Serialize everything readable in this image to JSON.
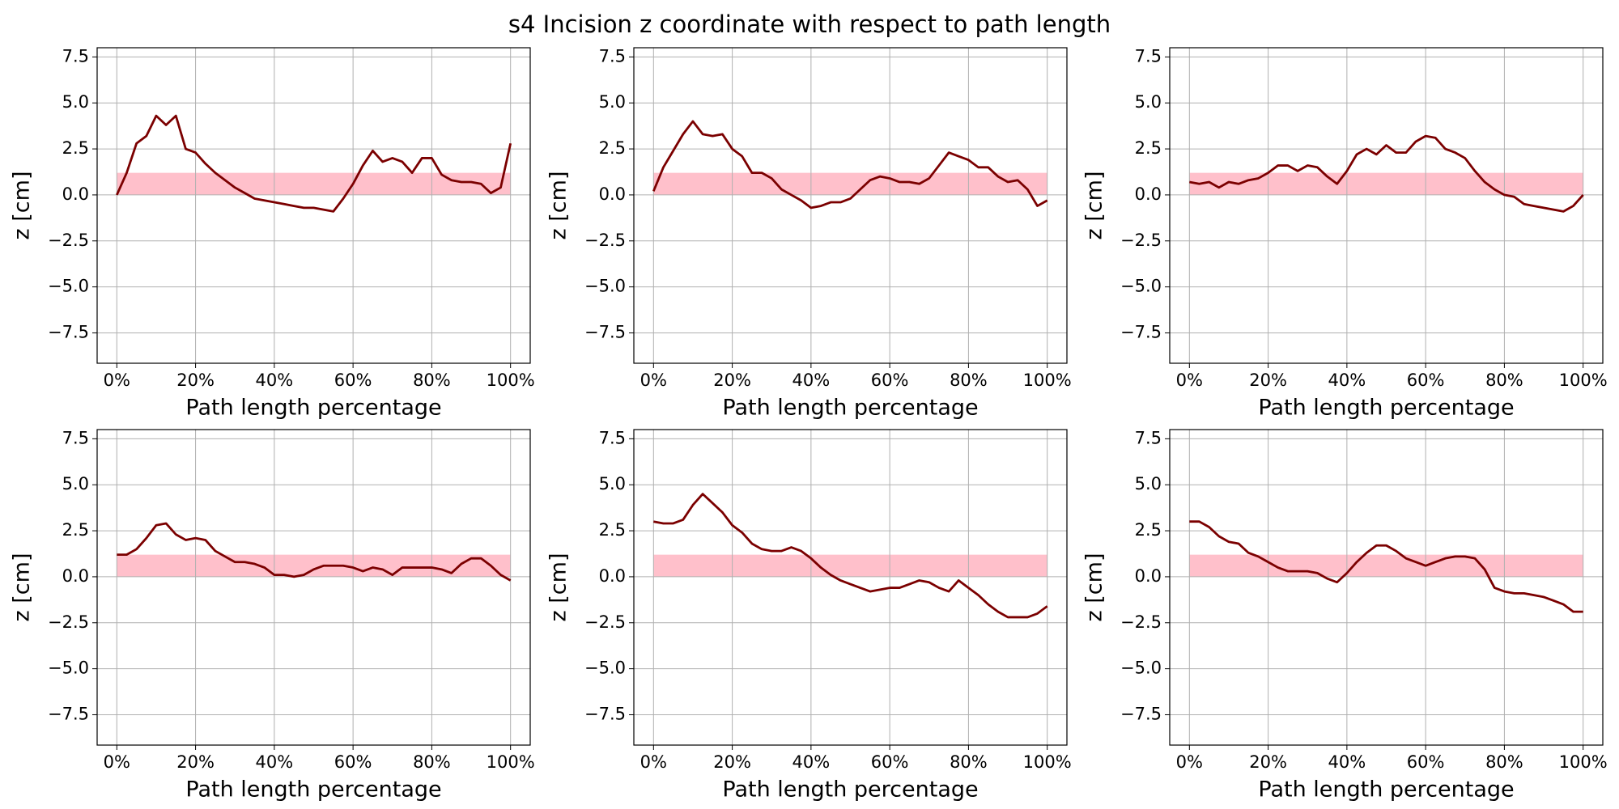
{
  "title": "s4 Incision z coordinate with respect to path length",
  "chart_data": [
    {
      "type": "line",
      "xlabel": "Path length percentage",
      "ylabel": "z [cm]",
      "color": "#7b0000",
      "band": [
        0,
        1.2
      ],
      "band_color": "#ffc0cb",
      "grid": true,
      "xlim": [
        -5,
        105
      ],
      "ylim": [
        -9.15,
        8.0
      ],
      "xticks": [
        {
          "value": 0,
          "label": "0%"
        },
        {
          "value": 20,
          "label": "20%"
        },
        {
          "value": 40,
          "label": "40%"
        },
        {
          "value": 60,
          "label": "60%"
        },
        {
          "value": 80,
          "label": "80%"
        },
        {
          "value": 100,
          "label": "100%"
        }
      ],
      "yticks": [
        {
          "value": -7.5,
          "label": "−7.5"
        },
        {
          "value": -5,
          "label": "−5.0"
        },
        {
          "value": -2.5,
          "label": "−2.5"
        },
        {
          "value": 0,
          "label": "0.0"
        },
        2.5,
        {
          "value": 5,
          "label": "5.0"
        },
        7.5
      ],
      "x": [
        0,
        2.5,
        5,
        7.5,
        10,
        12.5,
        15,
        17.5,
        20,
        22.5,
        25,
        27.5,
        30,
        32.5,
        35,
        37.5,
        40,
        42.5,
        45,
        47.5,
        50,
        52.5,
        55,
        57.5,
        60,
        62.5,
        65,
        67.5,
        70,
        72.5,
        75,
        77.5,
        80,
        82.5,
        85,
        87.5,
        90,
        92.5,
        95,
        97.5,
        100
      ],
      "values": [
        0,
        1.2,
        2.8,
        3.2,
        4.3,
        3.8,
        4.3,
        2.5,
        2.3,
        1.7,
        1.2,
        0.8,
        0.4,
        0.1,
        -0.2,
        -0.3,
        -0.4,
        -0.5,
        -0.6,
        -0.7,
        -0.7,
        -0.8,
        -0.9,
        -0.2,
        0.6,
        1.6,
        2.4,
        1.8,
        2.0,
        1.8,
        1.2,
        2.0,
        2.0,
        1.1,
        0.8,
        0.7,
        0.7,
        0.6,
        0.1,
        0.4,
        2.8
      ]
    },
    {
      "type": "line",
      "xlabel": "Path length percentage",
      "ylabel": "z [cm]",
      "color": "#7b0000",
      "band": [
        0,
        1.2
      ],
      "band_color": "#ffc0cb",
      "grid": true,
      "xlim": [
        -5,
        105
      ],
      "ylim": [
        -9.15,
        8.0
      ],
      "xticks": [
        {
          "value": 0,
          "label": "0%"
        },
        {
          "value": 20,
          "label": "20%"
        },
        {
          "value": 40,
          "label": "40%"
        },
        {
          "value": 60,
          "label": "60%"
        },
        {
          "value": 80,
          "label": "80%"
        },
        {
          "value": 100,
          "label": "100%"
        }
      ],
      "yticks": [
        {
          "value": -7.5,
          "label": "−7.5"
        },
        {
          "value": -5,
          "label": "−5.0"
        },
        {
          "value": -2.5,
          "label": "−2.5"
        },
        {
          "value": 0,
          "label": "0.0"
        },
        2.5,
        {
          "value": 5,
          "label": "5.0"
        },
        7.5
      ],
      "x": [
        0,
        2.5,
        5,
        7.5,
        10,
        12.5,
        15,
        17.5,
        20,
        22.5,
        25,
        27.5,
        30,
        32.5,
        35,
        37.5,
        40,
        42.5,
        45,
        47.5,
        50,
        52.5,
        55,
        57.5,
        60,
        62.5,
        65,
        67.5,
        70,
        72.5,
        75,
        77.5,
        80,
        82.5,
        85,
        87.5,
        90,
        92.5,
        95,
        97.5,
        100
      ],
      "values": [
        0.2,
        1.5,
        2.4,
        3.3,
        4.0,
        3.3,
        3.2,
        3.3,
        2.5,
        2.1,
        1.2,
        1.2,
        0.9,
        0.3,
        0.0,
        -0.3,
        -0.7,
        -0.6,
        -0.4,
        -0.4,
        -0.2,
        0.3,
        0.8,
        1.0,
        0.9,
        0.7,
        0.7,
        0.6,
        0.9,
        1.6,
        2.3,
        2.1,
        1.9,
        1.5,
        1.5,
        1.0,
        0.7,
        0.8,
        0.3,
        -0.6,
        -0.3
      ]
    },
    {
      "type": "line",
      "xlabel": "Path length percentage",
      "ylabel": "z [cm]",
      "color": "#7b0000",
      "band": [
        0,
        1.2
      ],
      "band_color": "#ffc0cb",
      "grid": true,
      "xlim": [
        -5,
        105
      ],
      "ylim": [
        -9.15,
        8.0
      ],
      "xticks": [
        {
          "value": 0,
          "label": "0%"
        },
        {
          "value": 20,
          "label": "20%"
        },
        {
          "value": 40,
          "label": "40%"
        },
        {
          "value": 60,
          "label": "60%"
        },
        {
          "value": 80,
          "label": "80%"
        },
        {
          "value": 100,
          "label": "100%"
        }
      ],
      "yticks": [
        {
          "value": -7.5,
          "label": "−7.5"
        },
        {
          "value": -5,
          "label": "−5.0"
        },
        {
          "value": -2.5,
          "label": "−2.5"
        },
        {
          "value": 0,
          "label": "0.0"
        },
        2.5,
        {
          "value": 5,
          "label": "5.0"
        },
        7.5
      ],
      "x": [
        0,
        2.5,
        5,
        7.5,
        10,
        12.5,
        15,
        17.5,
        20,
        22.5,
        25,
        27.5,
        30,
        32.5,
        35,
        37.5,
        40,
        42.5,
        45,
        47.5,
        50,
        52.5,
        55,
        57.5,
        60,
        62.5,
        65,
        67.5,
        70,
        72.5,
        75,
        77.5,
        80,
        82.5,
        85,
        87.5,
        90,
        92.5,
        95,
        97.5,
        100
      ],
      "values": [
        0.7,
        0.6,
        0.7,
        0.4,
        0.7,
        0.6,
        0.8,
        0.9,
        1.2,
        1.6,
        1.6,
        1.3,
        1.6,
        1.5,
        1.0,
        0.6,
        1.3,
        2.2,
        2.5,
        2.2,
        2.7,
        2.3,
        2.3,
        2.9,
        3.2,
        3.1,
        2.5,
        2.3,
        2.0,
        1.3,
        0.7,
        0.3,
        0.0,
        -0.1,
        -0.5,
        -0.6,
        -0.7,
        -0.8,
        -0.9,
        -0.6,
        0.0
      ]
    },
    {
      "type": "line",
      "xlabel": "Path length percentage",
      "ylabel": "z [cm]",
      "color": "#7b0000",
      "band": [
        0,
        1.2
      ],
      "band_color": "#ffc0cb",
      "grid": true,
      "xlim": [
        -5,
        105
      ],
      "ylim": [
        -9.15,
        8.0
      ],
      "xticks": [
        {
          "value": 0,
          "label": "0%"
        },
        {
          "value": 20,
          "label": "20%"
        },
        {
          "value": 40,
          "label": "40%"
        },
        {
          "value": 60,
          "label": "60%"
        },
        {
          "value": 80,
          "label": "80%"
        },
        {
          "value": 100,
          "label": "100%"
        }
      ],
      "yticks": [
        {
          "value": -7.5,
          "label": "−7.5"
        },
        {
          "value": -5,
          "label": "−5.0"
        },
        {
          "value": -2.5,
          "label": "−2.5"
        },
        {
          "value": 0,
          "label": "0.0"
        },
        2.5,
        {
          "value": 5,
          "label": "5.0"
        },
        7.5
      ],
      "x": [
        0,
        2.5,
        5,
        7.5,
        10,
        12.5,
        15,
        17.5,
        20,
        22.5,
        25,
        27.5,
        30,
        32.5,
        35,
        37.5,
        40,
        42.5,
        45,
        47.5,
        50,
        52.5,
        55,
        57.5,
        60,
        62.5,
        65,
        67.5,
        70,
        72.5,
        75,
        77.5,
        80,
        82.5,
        85,
        87.5,
        90,
        92.5,
        95,
        97.5,
        100
      ],
      "values": [
        1.2,
        1.2,
        1.5,
        2.1,
        2.8,
        2.9,
        2.3,
        2.0,
        2.1,
        2.0,
        1.4,
        1.1,
        0.8,
        0.8,
        0.7,
        0.5,
        0.1,
        0.1,
        0.0,
        0.1,
        0.4,
        0.6,
        0.6,
        0.6,
        0.5,
        0.3,
        0.5,
        0.4,
        0.1,
        0.5,
        0.5,
        0.5,
        0.5,
        0.4,
        0.2,
        0.7,
        1.0,
        1.0,
        0.6,
        0.1,
        -0.2
      ]
    },
    {
      "type": "line",
      "xlabel": "Path length percentage",
      "ylabel": "z [cm]",
      "color": "#7b0000",
      "band": [
        0,
        1.2
      ],
      "band_color": "#ffc0cb",
      "grid": true,
      "xlim": [
        -5,
        105
      ],
      "ylim": [
        -9.15,
        8.0
      ],
      "xticks": [
        {
          "value": 0,
          "label": "0%"
        },
        {
          "value": 20,
          "label": "20%"
        },
        {
          "value": 40,
          "label": "40%"
        },
        {
          "value": 60,
          "label": "60%"
        },
        {
          "value": 80,
          "label": "80%"
        },
        {
          "value": 100,
          "label": "100%"
        }
      ],
      "yticks": [
        {
          "value": -7.5,
          "label": "−7.5"
        },
        {
          "value": -5,
          "label": "−5.0"
        },
        {
          "value": -2.5,
          "label": "−2.5"
        },
        {
          "value": 0,
          "label": "0.0"
        },
        2.5,
        {
          "value": 5,
          "label": "5.0"
        },
        7.5
      ],
      "x": [
        0,
        2.5,
        5,
        7.5,
        10,
        12.5,
        15,
        17.5,
        20,
        22.5,
        25,
        27.5,
        30,
        32.5,
        35,
        37.5,
        40,
        42.5,
        45,
        47.5,
        50,
        52.5,
        55,
        57.5,
        60,
        62.5,
        65,
        67.5,
        70,
        72.5,
        75,
        77.5,
        80,
        82.5,
        85,
        87.5,
        90,
        92.5,
        95,
        97.5,
        100
      ],
      "values": [
        3.0,
        2.9,
        2.9,
        3.1,
        3.9,
        4.5,
        4.0,
        3.5,
        2.8,
        2.4,
        1.8,
        1.5,
        1.4,
        1.4,
        1.6,
        1.4,
        1.0,
        0.5,
        0.1,
        -0.2,
        -0.4,
        -0.6,
        -0.8,
        -0.7,
        -0.6,
        -0.6,
        -0.4,
        -0.2,
        -0.3,
        -0.6,
        -0.8,
        -0.2,
        -0.6,
        -1.0,
        -1.5,
        -1.9,
        -2.2,
        -2.2,
        -2.2,
        -2.0,
        -1.6
      ]
    },
    {
      "type": "line",
      "xlabel": "Path length percentage",
      "ylabel": "z [cm]",
      "color": "#7b0000",
      "band": [
        0,
        1.2
      ],
      "band_color": "#ffc0cb",
      "grid": true,
      "xlim": [
        -5,
        105
      ],
      "ylim": [
        -9.15,
        8.0
      ],
      "xticks": [
        {
          "value": 0,
          "label": "0%"
        },
        {
          "value": 20,
          "label": "20%"
        },
        {
          "value": 40,
          "label": "40%"
        },
        {
          "value": 60,
          "label": "60%"
        },
        {
          "value": 80,
          "label": "80%"
        },
        {
          "value": 100,
          "label": "100%"
        }
      ],
      "yticks": [
        {
          "value": -7.5,
          "label": "−7.5"
        },
        {
          "value": -5,
          "label": "−5.0"
        },
        {
          "value": -2.5,
          "label": "−2.5"
        },
        {
          "value": 0,
          "label": "0.0"
        },
        2.5,
        {
          "value": 5,
          "label": "5.0"
        },
        7.5
      ],
      "x": [
        0,
        2.5,
        5,
        7.5,
        10,
        12.5,
        15,
        17.5,
        20,
        22.5,
        25,
        27.5,
        30,
        32.5,
        35,
        37.5,
        40,
        42.5,
        45,
        47.5,
        50,
        52.5,
        55,
        57.5,
        60,
        62.5,
        65,
        67.5,
        70,
        72.5,
        75,
        77.5,
        80,
        82.5,
        85,
        87.5,
        90,
        92.5,
        95,
        97.5,
        100
      ],
      "values": [
        3.0,
        3.0,
        2.7,
        2.2,
        1.9,
        1.8,
        1.3,
        1.1,
        0.8,
        0.5,
        0.3,
        0.3,
        0.3,
        0.2,
        -0.1,
        -0.3,
        0.2,
        0.8,
        1.3,
        1.7,
        1.7,
        1.4,
        1.0,
        0.8,
        0.6,
        0.8,
        1.0,
        1.1,
        1.1,
        1.0,
        0.4,
        -0.6,
        -0.8,
        -0.9,
        -0.9,
        -1.0,
        -1.1,
        -1.3,
        -1.5,
        -1.9,
        -1.9
      ]
    }
  ]
}
